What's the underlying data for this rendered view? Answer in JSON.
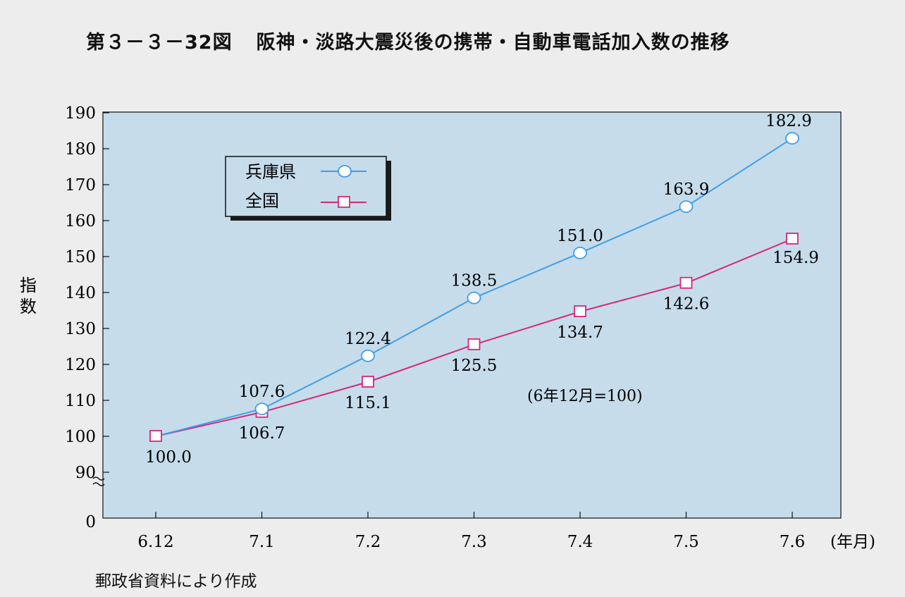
{
  "title": {
    "number": "第３－３－32図",
    "text": "阪神・淡路大震災後の携帯・自動車電話加入数の推移"
  },
  "source": "郵政省資料により作成",
  "colors": {
    "plot_background": "#c6dceb",
    "hyogo": "#3f9fe6",
    "national": "#d8257a"
  },
  "chart_data": {
    "type": "line",
    "title": "阪神・淡路大震災後の携帯・自動車電話加入数の推移",
    "xlabel": "(年月)",
    "ylabel": "指数",
    "note": "(6年12月=100)",
    "categories": [
      "6.12",
      "7.1",
      "7.2",
      "7.3",
      "7.4",
      "7.5",
      "7.6"
    ],
    "y_ticks": [
      0,
      90,
      100,
      110,
      120,
      130,
      140,
      150,
      160,
      170,
      180,
      190
    ],
    "ylim": [
      90,
      190
    ],
    "y_axis_break": true,
    "grid": false,
    "legend_position": "top-left",
    "series": [
      {
        "name": "兵庫県",
        "marker": "circle",
        "values": [
          100.0,
          107.6,
          122.4,
          138.5,
          151.0,
          163.9,
          182.9
        ],
        "labels": [
          "",
          "107.6",
          "122.4",
          "138.5",
          "151.0",
          "163.9",
          "182.9"
        ]
      },
      {
        "name": "全国",
        "marker": "square",
        "values": [
          100.0,
          106.7,
          115.1,
          125.5,
          134.7,
          142.6,
          154.9
        ],
        "labels": [
          "100.0",
          "106.7",
          "115.1",
          "125.5",
          "134.7",
          "142.6",
          "154.9"
        ]
      }
    ]
  }
}
